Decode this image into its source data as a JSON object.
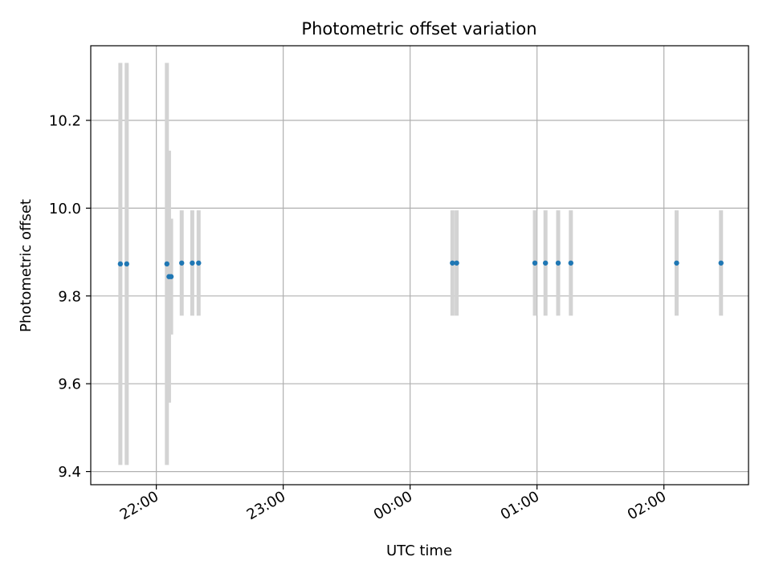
{
  "chart_data": {
    "type": "scatter",
    "title": "Photometric offset variation",
    "xlabel": "UTC time",
    "ylabel": "Photometric offset",
    "x_ticks": [
      "22:00",
      "23:00",
      "00:00",
      "01:00",
      "02:00"
    ],
    "y_ticks": [
      "9.4",
      "9.6",
      "9.8",
      "10.0",
      "10.2"
    ],
    "xlim": [
      "21:29",
      "02:40"
    ],
    "ylim": [
      9.37,
      10.37
    ],
    "grid": true,
    "point_color": "#1f77b4",
    "errorbar_color": "#d3d3d3",
    "points": [
      {
        "x": "21:43",
        "y": 9.873,
        "err": 0.458
      },
      {
        "x": "21:46",
        "y": 9.873,
        "err": 0.458
      },
      {
        "x": "22:05",
        "y": 9.873,
        "err": 0.458
      },
      {
        "x": "22:06",
        "y": 9.844,
        "err": 0.287
      },
      {
        "x": "22:07",
        "y": 9.844,
        "err": 0.132
      },
      {
        "x": "22:12",
        "y": 9.875,
        "err": 0.12
      },
      {
        "x": "22:17",
        "y": 9.875,
        "err": 0.12
      },
      {
        "x": "22:20",
        "y": 9.875,
        "err": 0.12
      },
      {
        "x": "00:20",
        "y": 9.875,
        "err": 0.12
      },
      {
        "x": "00:22",
        "y": 9.875,
        "err": 0.12
      },
      {
        "x": "00:59",
        "y": 9.875,
        "err": 0.12
      },
      {
        "x": "01:04",
        "y": 9.875,
        "err": 0.12
      },
      {
        "x": "01:10",
        "y": 9.875,
        "err": 0.12
      },
      {
        "x": "01:16",
        "y": 9.875,
        "err": 0.12
      },
      {
        "x": "02:06",
        "y": 9.875,
        "err": 0.12
      },
      {
        "x": "02:27",
        "y": 9.875,
        "err": 0.12
      }
    ]
  }
}
